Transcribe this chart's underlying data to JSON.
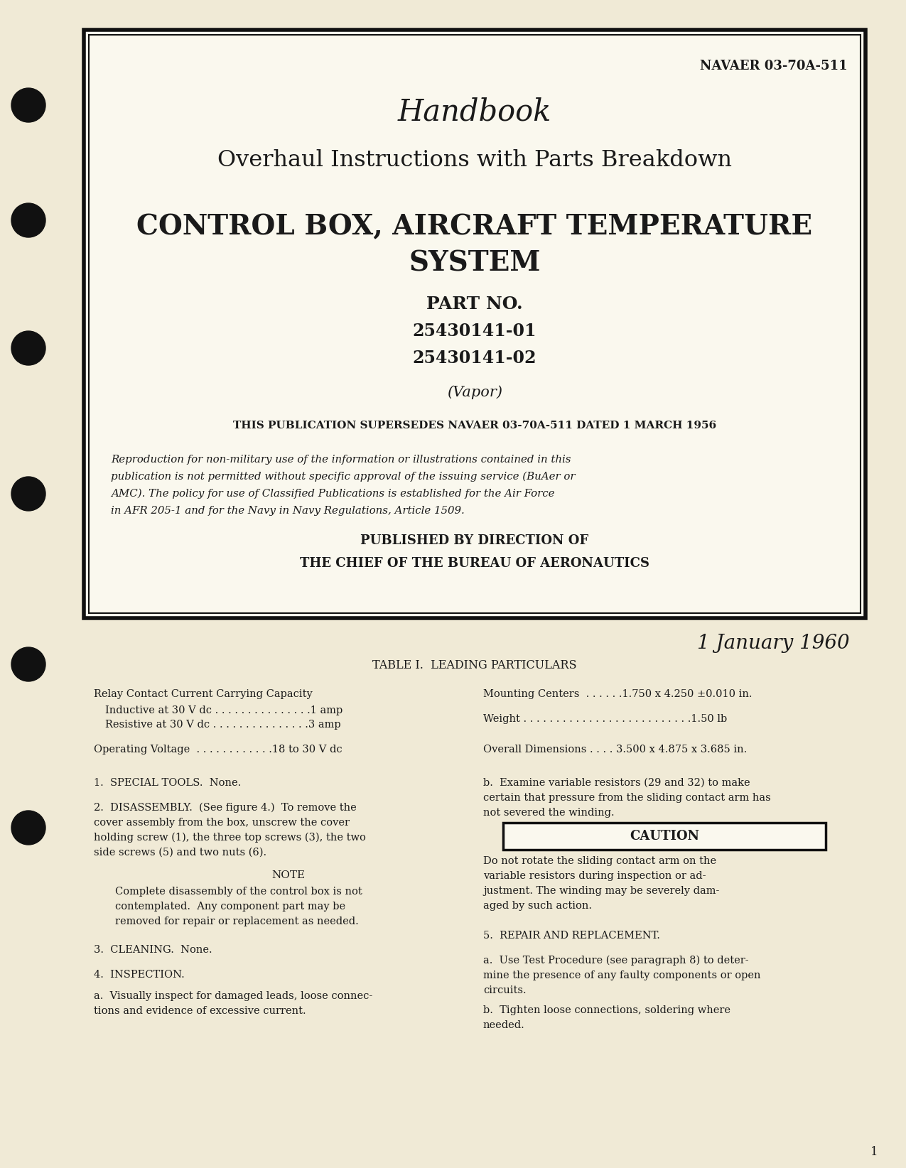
{
  "bg_color": "#f0ead6",
  "box_bg": "#faf8ee",
  "text_color": "#1a1a1a",
  "navaer": "NAVAER 03-70A-511",
  "handbook": "Handbook",
  "subtitle": "Overhaul Instructions with Parts Breakdown",
  "title_line1": "CONTROL BOX, AIRCRAFT TEMPERATURE",
  "title_line2": "SYSTEM",
  "part_no_label": "PART NO.",
  "part_no_1": "25430141-01",
  "part_no_2": "25430141-02",
  "vapor": "(Vapor)",
  "supersedes": "THIS PUBLICATION SUPERSEDES NAVAER 03-70A-511 DATED 1 MARCH 1956",
  "repro_line1": "Reproduction for non-military use of the information or illustrations contained in this",
  "repro_line2": "publication is not permitted without specific approval of the issuing service (BuAer or",
  "repro_line3": "AMC). The policy for use of Classified Publications is established for the Air Force",
  "repro_line4": "in AFR 205-1 and for the Navy in Navy Regulations, Article 1509.",
  "published_line1": "PUBLISHED BY DIRECTION OF",
  "published_line2": "THE CHIEF OF THE BUREAU OF AERONAUTICS",
  "date": "1 January 1960",
  "table_title": "TABLE I.  LEADING PARTICULARS",
  "page_number": "1",
  "hole_positions": [
    148,
    310,
    490,
    695,
    935,
    1165
  ]
}
